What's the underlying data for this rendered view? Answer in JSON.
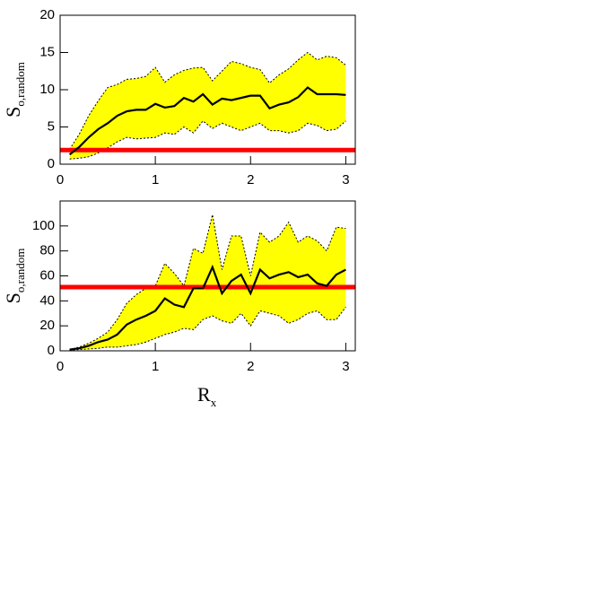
{
  "chart_data": [
    {
      "type": "band-line",
      "y_label": "S",
      "y_label_sub": "o,random",
      "x": [
        0.1,
        0.2,
        0.3,
        0.4,
        0.5,
        0.6,
        0.7,
        0.8,
        0.9,
        1.0,
        1.1,
        1.2,
        1.3,
        1.4,
        1.5,
        1.6,
        1.7,
        1.8,
        1.9,
        2.0,
        2.1,
        2.2,
        2.3,
        2.4,
        2.5,
        2.6,
        2.7,
        2.8,
        2.9,
        3.0
      ],
      "values": [
        1.3,
        2.3,
        3.6,
        4.7,
        5.5,
        6.5,
        7.1,
        7.3,
        7.3,
        8.1,
        7.6,
        7.8,
        8.9,
        8.4,
        9.4,
        8.0,
        8.8,
        8.6,
        8.9,
        9.2,
        9.2,
        7.5,
        8.0,
        8.3,
        9.0,
        10.3,
        9.4,
        9.4,
        9.4,
        9.3
      ],
      "band_upper": [
        2,
        4,
        6.5,
        8.5,
        10.3,
        10.7,
        11.4,
        11.5,
        11.8,
        13,
        11,
        12,
        12.6,
        12.9,
        13,
        11.2,
        12.5,
        13.8,
        13.5,
        13,
        12.7,
        10.9,
        12,
        12.8,
        14,
        15,
        14,
        14.5,
        14.3,
        13.3
      ],
      "band_lower": [
        0.7,
        0.8,
        1,
        1.5,
        2.2,
        3,
        3.6,
        3.4,
        3.5,
        3.6,
        4.2,
        4,
        5,
        4.2,
        5.8,
        4.8,
        5.5,
        5,
        4.5,
        5,
        5.5,
        4.5,
        4.5,
        4.2,
        4.5,
        5.5,
        5.2,
        4.5,
        4.7,
        5.8
      ],
      "reference_line": 1.9,
      "color": "#000000",
      "band_color": "#ffff00",
      "reference_color": "#ff0000",
      "xlim": [
        0,
        3.1
      ],
      "xticks": [
        0,
        1,
        2,
        3
      ],
      "ylim": [
        0,
        20
      ],
      "yticks": [
        0,
        5,
        10,
        15,
        20
      ]
    },
    {
      "type": "band-line",
      "y_label": "S",
      "y_label_sub": "o,random",
      "x_label": "R",
      "x_label_sub": "x",
      "x": [
        0.1,
        0.2,
        0.3,
        0.4,
        0.5,
        0.6,
        0.7,
        0.8,
        0.9,
        1.0,
        1.1,
        1.2,
        1.3,
        1.4,
        1.5,
        1.6,
        1.7,
        1.8,
        1.9,
        2.0,
        2.1,
        2.2,
        2.3,
        2.4,
        2.5,
        2.6,
        2.7,
        2.8,
        2.9,
        3.0
      ],
      "values": [
        1,
        2,
        4,
        7,
        9,
        13,
        21,
        25,
        28,
        32,
        42,
        37,
        35,
        50,
        50,
        67,
        46,
        56,
        61,
        46,
        65,
        58,
        61,
        63,
        59,
        61,
        54,
        52,
        61,
        65
      ],
      "band_upper": [
        1,
        3,
        6,
        10,
        15,
        25,
        38,
        45,
        50,
        52,
        70,
        62,
        52,
        82,
        78,
        109,
        65,
        92,
        92,
        60,
        95,
        87,
        92,
        103,
        87,
        92,
        88,
        80,
        99,
        98
      ],
      "band_lower": [
        0.5,
        1,
        1.5,
        2,
        3,
        3,
        4,
        5,
        7,
        10,
        13,
        15,
        18,
        17,
        25,
        28,
        24,
        22,
        30,
        20,
        32,
        30,
        28,
        22,
        25,
        30,
        32,
        25,
        25,
        35
      ],
      "reference_line": 51,
      "color": "#000000",
      "band_color": "#ffff00",
      "reference_color": "#ff0000",
      "xlim": [
        0,
        3.1
      ],
      "xticks": [
        0,
        1,
        2,
        3
      ],
      "ylim": [
        0,
        120
      ],
      "yticks": [
        0,
        20,
        40,
        60,
        80,
        100
      ]
    }
  ]
}
